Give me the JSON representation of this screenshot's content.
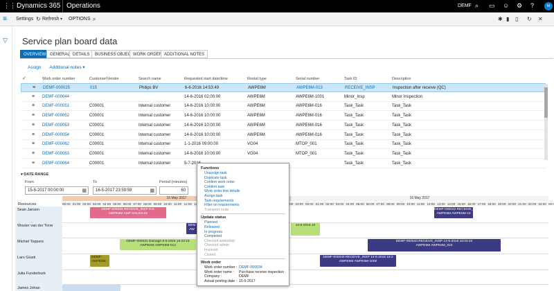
{
  "topbar": {
    "brand": "Dynamics 365",
    "module": "Operations",
    "company": "DEMF",
    "avatar": "M"
  },
  "actionbar": {
    "settings": "Settings",
    "refresh": "Refresh",
    "options": "OPTIONS"
  },
  "page": {
    "title": "Service plan board data"
  },
  "tabs": [
    {
      "label": "OVERVIEW"
    },
    {
      "label": "GENERAL"
    },
    {
      "label": "DETAILS"
    },
    {
      "label": "BUSINESS OBJECT"
    },
    {
      "label": "WORK ORDER"
    },
    {
      "label": "ADDITIONAL NOTES"
    }
  ],
  "subactions": {
    "assign": "Assign",
    "notes": "Additional notes"
  },
  "grid": {
    "headers": [
      "Work order number",
      "Customer/Vendor",
      "Search name",
      "Requested start date/time",
      "Rental type",
      "Serial number",
      "Task ID",
      "Description"
    ],
    "rows": [
      [
        "DEMF-000025",
        "015",
        "Philips BV",
        "6-6-2016 14:53:49",
        "AWPE6M",
        "AWPE6M-013",
        "RECEIVE_INSP",
        "Inspection after receive (QC)"
      ],
      [
        "DEMF-000044",
        "",
        "",
        "14-6-2016 02:00:00",
        "AWPE6M",
        "AWPE6M-1001",
        "Minor_Insp",
        "Minor Inspection"
      ],
      [
        "DEMF-000051",
        "C00001",
        "Internal customer",
        "14-6-2016 10:00:00",
        "AWPE6M",
        "AWPE6M-016",
        "Task_Task",
        "Task_Task"
      ],
      [
        "DEMF-000052",
        "C00001",
        "Internal customer",
        "14-6-2016 10:00:00",
        "AWPE6M",
        "AWPE6M-016",
        "Task_Task",
        "Task_Task"
      ],
      [
        "DEMF-000053",
        "C00001",
        "Internal customer",
        "14-6-2016 10:00:00",
        "AWPE6M",
        "AWPE6M-016",
        "Task_Task",
        "Task_Task"
      ],
      [
        "DEMF-000054",
        "C00001",
        "Internal customer",
        "14-6-2016 10:00:00",
        "AWPE6M",
        "AWPE6M-016",
        "Task_Task",
        "Task_Task"
      ],
      [
        "DEMF-000062",
        "C00001",
        "Internal customer",
        "1-1-2016 09:00:00",
        "VG04",
        "MTOP_001",
        "Task_Task",
        "Task_Task"
      ],
      [
        "DEMF-000063",
        "C00001",
        "Internal customer",
        "14-6-2016 10:00:00",
        "VG04",
        "MTOP_001",
        "Task_Task",
        "Task_Task"
      ],
      [
        "DEMF-000064",
        "C00001",
        "Internal customer",
        "5-7-2016",
        "",
        "",
        "Task_Task",
        "Task_Task"
      ]
    ]
  },
  "daterange": {
    "heading": "DATE RANGE",
    "from_label": "From",
    "from_value": "15-5-2017 00:00:00",
    "to_label": "To",
    "to_value": "16-5-2017 23:59:59",
    "period_label": "Period (minutes)",
    "period_value": "60"
  },
  "schedule": {
    "resources_label": "Resources",
    "day1": "15 May 2017",
    "day2": "16 May 2017",
    "ticks": [
      "00:00",
      "01:00",
      "02:00",
      "03:00",
      "04:00",
      "05:00",
      "06:00",
      "07:00",
      "08:00",
      "09:00",
      "10:00",
      "11:00",
      "12:00",
      "13:00",
      "14:00",
      "15:00",
      "16:00",
      "17:00",
      "18:00",
      "19:00",
      "20:00",
      "21:00",
      "22:00",
      "23:00",
      "00:00",
      "01:00",
      "02:00",
      "03:00",
      "04:00",
      "05:00",
      "06:00",
      "07:00",
      "08:00",
      "09:00",
      "10:00",
      "11:00",
      "12:00",
      "13:00",
      "14:00",
      "15:00",
      "16:00",
      "17:00",
      "18:00",
      "19:00",
      "20:00",
      "21:00",
      "22:00",
      "23:00",
      "00:00"
    ],
    "resources": [
      "Sean Jansen",
      "Wouter van der Torre",
      "Michiel Toppers",
      "Lars Giusti",
      "Julia Funderburk",
      "James Johan"
    ],
    "tasks": [
      {
        "l1": "DEMF-000033 RECEIVE_INSP 6-6-",
        "l2": "AWPE6M AWP-SALES-01",
        "color": "pink"
      },
      {
        "l1": "DEMF-000042 RECEIVE_",
        "l2": "AWPE6M AWPE6M-10",
        "color": "navy"
      },
      {
        "l1": "DEM",
        "l2": "AW",
        "color": "navy"
      },
      {
        "l1": "14-6-2016 10",
        "l2": "",
        "color": "lime"
      },
      {
        "l1": "DEMF-000031 Damage 8-6-2016 15:23:15",
        "l2": "AWPE6M AWPE6M-014",
        "color": "lime"
      },
      {
        "l1": "DEMF-000043 RECEIVE_INSP 14-6-2016 16:03:34",
        "l2": "AWPE6M AWPE6M_023",
        "color": "navy"
      },
      {
        "l1": "DEMF-",
        "l2": "AWPE6M",
        "color": "olive"
      },
      {
        "l1": "DEMF-000040 RECEIVE_INSP 14-6-2016 16:2",
        "l2": "AWPE6M AWPE6M-1000",
        "color": "navy"
      }
    ]
  },
  "popup": {
    "functions_title": "Functions",
    "functions": [
      {
        "label": "Unassign task",
        "enabled": true
      },
      {
        "label": "Duplicate task",
        "enabled": true
      },
      {
        "label": "Confirm work order",
        "enabled": true
      },
      {
        "label": "Confirm task",
        "enabled": true
      },
      {
        "label": "Work order line details",
        "enabled": true
      },
      {
        "label": "Assign task",
        "enabled": true
      },
      {
        "label": "Task requirements",
        "enabled": true
      },
      {
        "label": "Filter on requirements",
        "enabled": true
      },
      {
        "label": "Transport route",
        "enabled": false
      }
    ],
    "status_title": "Update status",
    "statuses": [
      {
        "label": "Planned",
        "enabled": true
      },
      {
        "label": "Released",
        "enabled": true
      },
      {
        "label": "In progress",
        "enabled": true
      },
      {
        "label": "Completed",
        "enabled": true
      },
      {
        "label": "Checked workshop",
        "enabled": false
      },
      {
        "label": "Checked admin",
        "enabled": false
      },
      {
        "label": "Invoiced",
        "enabled": false
      },
      {
        "label": "Closed",
        "enabled": false
      }
    ],
    "wo_title": "Work order",
    "wo_fields": [
      {
        "k": "Work order number :",
        "v": "DEMF-000034"
      },
      {
        "k": "Work order name :",
        "v": "Purchase receive inspection"
      },
      {
        "k": "Company :",
        "v": "DEMF"
      },
      {
        "k": "Actual posting date :",
        "v": "15-5-2017"
      }
    ]
  }
}
